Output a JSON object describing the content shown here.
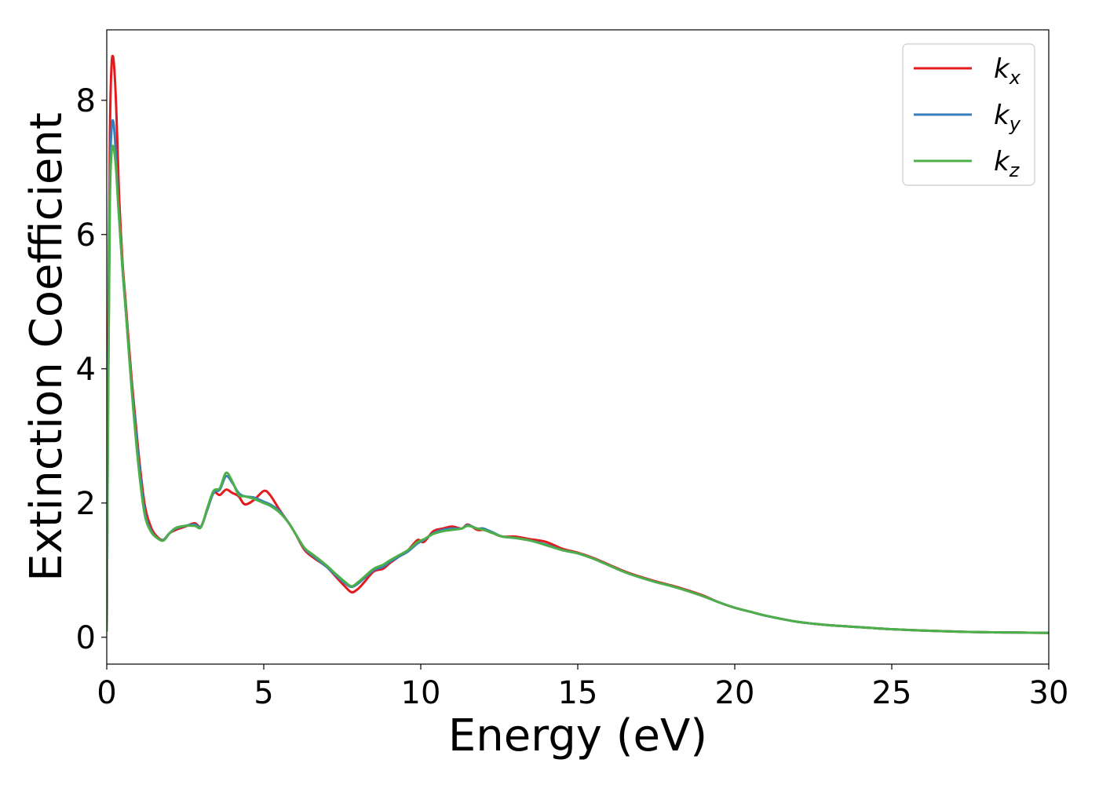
{
  "chart_data": {
    "type": "line",
    "xlabel": "Energy (eV)",
    "ylabel": "Extinction Coefficient",
    "xlim": [
      0,
      30
    ],
    "ylim": [
      -0.4,
      9.05
    ],
    "xticks": [
      0,
      5,
      10,
      15,
      20,
      25,
      30
    ],
    "yticks": [
      0,
      2,
      4,
      6,
      8
    ],
    "grid": false,
    "legend_position": "top-right",
    "series": [
      {
        "name": "k_x",
        "label_main": "k",
        "label_sub": "x",
        "color": "#e41a1c",
        "x": [
          0,
          0.05,
          0.1,
          0.15,
          0.2,
          0.25,
          0.3,
          0.35,
          0.4,
          0.5,
          0.6,
          0.8,
          1.0,
          1.2,
          1.4,
          1.6,
          1.8,
          2.0,
          2.2,
          2.5,
          2.8,
          3.0,
          3.2,
          3.4,
          3.6,
          3.8,
          4.0,
          4.2,
          4.4,
          4.7,
          5.0,
          5.2,
          5.5,
          5.8,
          6.0,
          6.3,
          6.6,
          7.0,
          7.3,
          7.6,
          7.8,
          8.0,
          8.2,
          8.5,
          8.8,
          9.0,
          9.3,
          9.6,
          9.9,
          10.1,
          10.4,
          10.7,
          11.0,
          11.3,
          11.5,
          11.8,
          12.0,
          12.3,
          12.6,
          13.0,
          13.5,
          14.0,
          14.5,
          15.0,
          15.5,
          16.0,
          16.5,
          17.0,
          17.5,
          18.0,
          18.5,
          19.0,
          19.5,
          20.0,
          20.5,
          21.0,
          22.0,
          23.0,
          24.0,
          25.0,
          26.0,
          27.0,
          28.0,
          29.0,
          30.0
        ],
        "y": [
          0.1,
          4.5,
          7.5,
          8.5,
          8.65,
          8.4,
          7.9,
          7.2,
          6.5,
          5.6,
          5.0,
          3.8,
          2.8,
          2.0,
          1.65,
          1.5,
          1.45,
          1.55,
          1.6,
          1.65,
          1.7,
          1.65,
          1.9,
          2.15,
          2.12,
          2.2,
          2.15,
          2.1,
          1.98,
          2.05,
          2.18,
          2.12,
          1.9,
          1.7,
          1.55,
          1.3,
          1.18,
          1.05,
          0.9,
          0.75,
          0.67,
          0.72,
          0.82,
          0.98,
          1.02,
          1.1,
          1.2,
          1.3,
          1.45,
          1.42,
          1.58,
          1.62,
          1.65,
          1.62,
          1.68,
          1.6,
          1.6,
          1.55,
          1.5,
          1.5,
          1.46,
          1.42,
          1.32,
          1.26,
          1.18,
          1.08,
          0.98,
          0.9,
          0.83,
          0.77,
          0.7,
          0.62,
          0.52,
          0.44,
          0.38,
          0.32,
          0.23,
          0.18,
          0.15,
          0.12,
          0.1,
          0.085,
          0.075,
          0.07,
          0.065
        ]
      },
      {
        "name": "k_y",
        "label_main": "k",
        "label_sub": "y",
        "color": "#377eb8",
        "x": [
          0,
          0.05,
          0.1,
          0.15,
          0.2,
          0.25,
          0.3,
          0.35,
          0.4,
          0.5,
          0.6,
          0.8,
          1.0,
          1.2,
          1.4,
          1.6,
          1.8,
          2.0,
          2.2,
          2.5,
          2.8,
          3.0,
          3.2,
          3.4,
          3.6,
          3.8,
          4.0,
          4.2,
          4.4,
          4.7,
          5.0,
          5.2,
          5.5,
          5.8,
          6.0,
          6.3,
          6.6,
          7.0,
          7.3,
          7.6,
          7.8,
          8.0,
          8.2,
          8.5,
          8.8,
          9.0,
          9.3,
          9.6,
          9.9,
          10.1,
          10.4,
          10.7,
          11.0,
          11.3,
          11.5,
          11.8,
          12.0,
          12.3,
          12.6,
          13.0,
          13.5,
          14.0,
          14.5,
          15.0,
          15.5,
          16.0,
          16.5,
          17.0,
          17.5,
          18.0,
          18.5,
          19.0,
          19.5,
          20.0,
          20.5,
          21.0,
          22.0,
          23.0,
          24.0,
          25.0,
          26.0,
          27.0,
          28.0,
          29.0,
          30.0
        ],
        "y": [
          0.1,
          4.0,
          6.8,
          7.55,
          7.7,
          7.5,
          7.1,
          6.6,
          6.2,
          5.5,
          4.9,
          3.7,
          2.7,
          1.9,
          1.6,
          1.48,
          1.45,
          1.55,
          1.62,
          1.66,
          1.68,
          1.65,
          1.9,
          2.15,
          2.2,
          2.4,
          2.3,
          2.15,
          2.1,
          2.08,
          2.02,
          1.98,
          1.88,
          1.7,
          1.55,
          1.32,
          1.2,
          1.05,
          0.92,
          0.8,
          0.75,
          0.8,
          0.88,
          1.0,
          1.05,
          1.12,
          1.2,
          1.28,
          1.4,
          1.45,
          1.55,
          1.6,
          1.62,
          1.62,
          1.67,
          1.62,
          1.62,
          1.56,
          1.5,
          1.48,
          1.44,
          1.38,
          1.3,
          1.25,
          1.17,
          1.07,
          0.97,
          0.89,
          0.82,
          0.76,
          0.69,
          0.61,
          0.52,
          0.44,
          0.38,
          0.32,
          0.23,
          0.18,
          0.15,
          0.12,
          0.1,
          0.085,
          0.075,
          0.07,
          0.065
        ]
      },
      {
        "name": "k_z",
        "label_main": "k",
        "label_sub": "z",
        "color": "#4daf4a",
        "x": [
          0,
          0.05,
          0.1,
          0.15,
          0.2,
          0.25,
          0.3,
          0.35,
          0.4,
          0.5,
          0.6,
          0.8,
          1.0,
          1.2,
          1.4,
          1.6,
          1.8,
          2.0,
          2.2,
          2.5,
          2.8,
          3.0,
          3.2,
          3.4,
          3.6,
          3.8,
          4.0,
          4.2,
          4.4,
          4.7,
          5.0,
          5.2,
          5.5,
          5.8,
          6.0,
          6.3,
          6.6,
          7.0,
          7.3,
          7.6,
          7.8,
          8.0,
          8.2,
          8.5,
          8.8,
          9.0,
          9.3,
          9.6,
          9.9,
          10.1,
          10.4,
          10.7,
          11.0,
          11.3,
          11.5,
          11.8,
          12.0,
          12.3,
          12.6,
          13.0,
          13.5,
          14.0,
          14.5,
          15.0,
          15.5,
          16.0,
          16.5,
          17.0,
          17.5,
          18.0,
          18.5,
          19.0,
          19.5,
          20.0,
          20.5,
          21.0,
          22.0,
          23.0,
          24.0,
          25.0,
          26.0,
          27.0,
          28.0,
          29.0,
          30.0
        ],
        "y": [
          0.1,
          3.8,
          6.5,
          7.2,
          7.32,
          7.2,
          6.95,
          6.55,
          6.2,
          5.5,
          4.9,
          3.65,
          2.6,
          1.85,
          1.58,
          1.48,
          1.44,
          1.55,
          1.63,
          1.66,
          1.66,
          1.64,
          1.92,
          2.18,
          2.22,
          2.45,
          2.32,
          2.12,
          2.1,
          2.06,
          2.0,
          1.96,
          1.86,
          1.7,
          1.55,
          1.33,
          1.22,
          1.07,
          0.94,
          0.82,
          0.76,
          0.82,
          0.9,
          1.02,
          1.08,
          1.14,
          1.22,
          1.3,
          1.42,
          1.46,
          1.54,
          1.58,
          1.6,
          1.62,
          1.66,
          1.62,
          1.6,
          1.55,
          1.5,
          1.48,
          1.44,
          1.37,
          1.3,
          1.25,
          1.17,
          1.07,
          0.97,
          0.89,
          0.82,
          0.76,
          0.69,
          0.61,
          0.52,
          0.44,
          0.38,
          0.32,
          0.23,
          0.18,
          0.15,
          0.12,
          0.1,
          0.085,
          0.075,
          0.07,
          0.065
        ]
      }
    ]
  }
}
